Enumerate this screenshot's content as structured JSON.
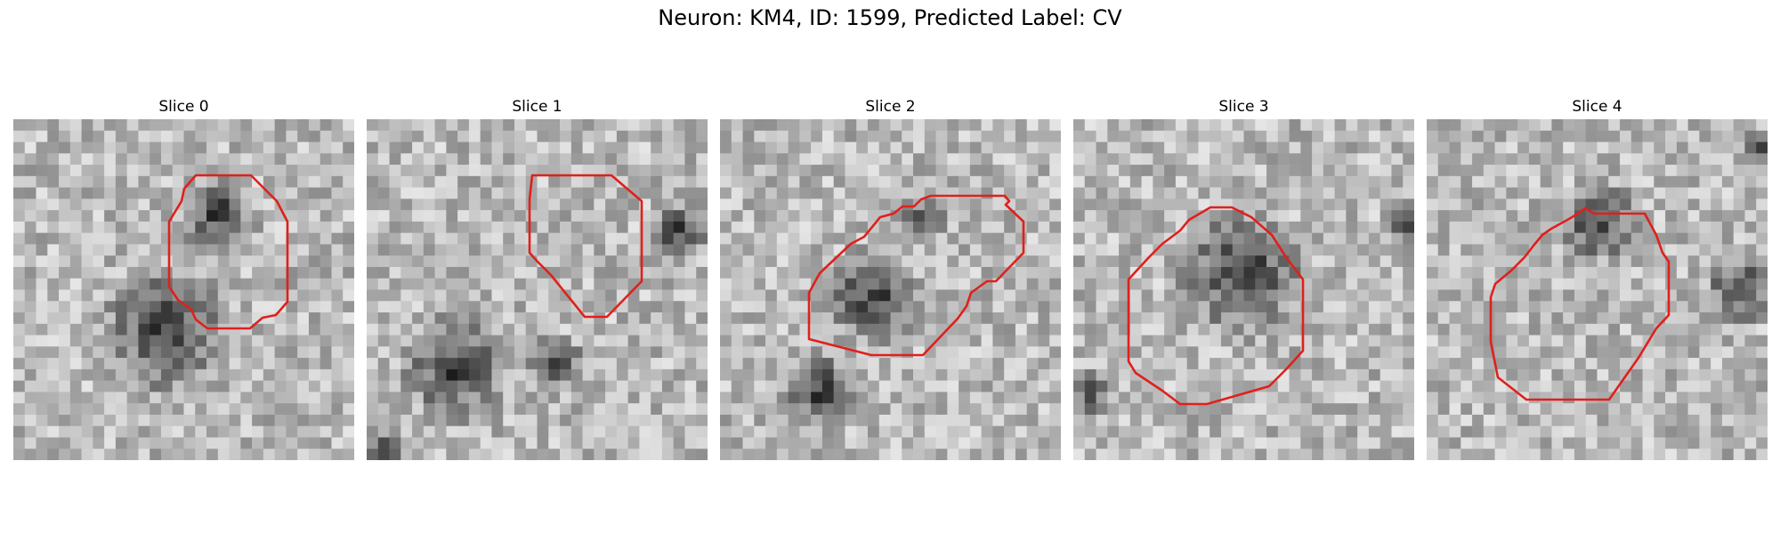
{
  "figure": {
    "title": "Neuron: KM4, ID: 1599, Predicted Label: CV"
  },
  "contour_color": "#e0201b",
  "slices": [
    {
      "title": "Slice 0",
      "seed": 11,
      "dark_blobs": [
        [
          0.45,
          0.62,
          0.22
        ],
        [
          0.6,
          0.28,
          0.13
        ]
      ]
    },
    {
      "title": "Slice 1",
      "seed": 23,
      "dark_blobs": [
        [
          0.26,
          0.73,
          0.18
        ],
        [
          0.55,
          0.72,
          0.1
        ],
        [
          0.92,
          0.33,
          0.1
        ],
        [
          0.05,
          0.97,
          0.06
        ]
      ]
    },
    {
      "title": "Slice 2",
      "seed": 37,
      "dark_blobs": [
        [
          0.45,
          0.52,
          0.16
        ],
        [
          0.3,
          0.8,
          0.13
        ],
        [
          0.6,
          0.3,
          0.08
        ]
      ]
    },
    {
      "title": "Slice 3",
      "seed": 41,
      "dark_blobs": [
        [
          0.5,
          0.45,
          0.22
        ],
        [
          0.98,
          0.3,
          0.07
        ],
        [
          0.05,
          0.8,
          0.08
        ]
      ]
    },
    {
      "title": "Slice 4",
      "seed": 53,
      "dark_blobs": [
        [
          0.5,
          0.3,
          0.14
        ],
        [
          0.92,
          0.5,
          0.12
        ],
        [
          0.98,
          0.08,
          0.06
        ]
      ]
    }
  ]
}
